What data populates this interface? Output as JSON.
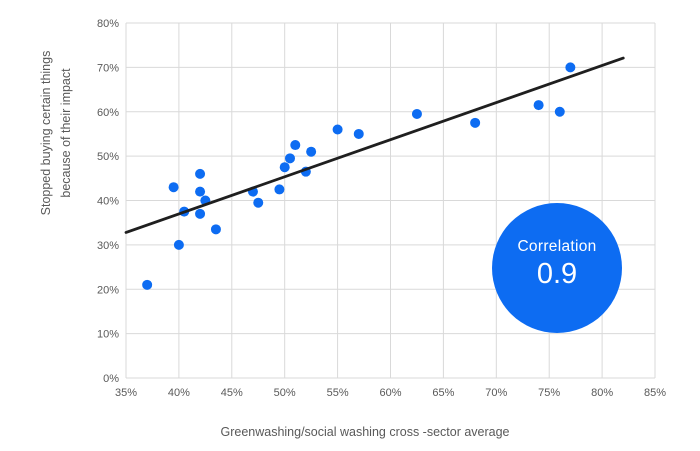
{
  "chart_data": {
    "type": "scatter",
    "title": "",
    "xlabel": "Greenwashing/social washing cross -sector average",
    "ylabel_lines": [
      "Stopped buying certain things",
      "because of their impact"
    ],
    "xlim": [
      35,
      85
    ],
    "ylim": [
      0,
      80
    ],
    "grid": true,
    "x_ticks": [
      {
        "v": 35,
        "label": "35%"
      },
      {
        "v": 40,
        "label": "40%"
      },
      {
        "v": 45,
        "label": "45%"
      },
      {
        "v": 50,
        "label": "50%"
      },
      {
        "v": 55,
        "label": "55%"
      },
      {
        "v": 60,
        "label": "60%"
      },
      {
        "v": 65,
        "label": "65%"
      },
      {
        "v": 70,
        "label": "70%"
      },
      {
        "v": 75,
        "label": "75%"
      },
      {
        "v": 80,
        "label": "80%"
      },
      {
        "v": 85,
        "label": "85%"
      }
    ],
    "y_ticks": [
      {
        "v": 0,
        "label": "0%"
      },
      {
        "v": 10,
        "label": "10%"
      },
      {
        "v": 20,
        "label": "20%"
      },
      {
        "v": 30,
        "label": "30%"
      },
      {
        "v": 40,
        "label": "40%"
      },
      {
        "v": 50,
        "label": "50%"
      },
      {
        "v": 60,
        "label": "60%"
      },
      {
        "v": 70,
        "label": "70%"
      },
      {
        "v": 80,
        "label": "80%"
      }
    ],
    "points": [
      [
        37,
        21
      ],
      [
        39.5,
        43
      ],
      [
        40,
        30
      ],
      [
        40.5,
        37.5
      ],
      [
        42,
        46
      ],
      [
        42,
        42
      ],
      [
        42,
        37
      ],
      [
        42.5,
        40
      ],
      [
        43.5,
        33.5
      ],
      [
        47,
        42
      ],
      [
        47.5,
        39.5
      ],
      [
        49.5,
        42.5
      ],
      [
        50,
        47.5
      ],
      [
        50.5,
        49.5
      ],
      [
        51,
        52.5
      ],
      [
        52,
        46.5
      ],
      [
        52.5,
        51
      ],
      [
        55,
        56
      ],
      [
        57,
        55
      ],
      [
        62.5,
        59.5
      ],
      [
        68,
        57.5
      ],
      [
        74,
        61.5
      ],
      [
        76,
        60
      ],
      [
        77,
        70
      ]
    ],
    "trendline": {
      "x1": 35,
      "y1": 32.8,
      "x2": 82,
      "y2": 72.1
    },
    "annotation": {
      "label": "Correlation",
      "value": "0.9"
    },
    "legend": "none",
    "colors": {
      "dot": "#0d6cf2",
      "trend": "#1f1f1f",
      "grid": "#d9d9d9",
      "axis_text": "#595959",
      "badge_bg": "#0d6cf2",
      "badge_text": "#ffffff"
    }
  }
}
